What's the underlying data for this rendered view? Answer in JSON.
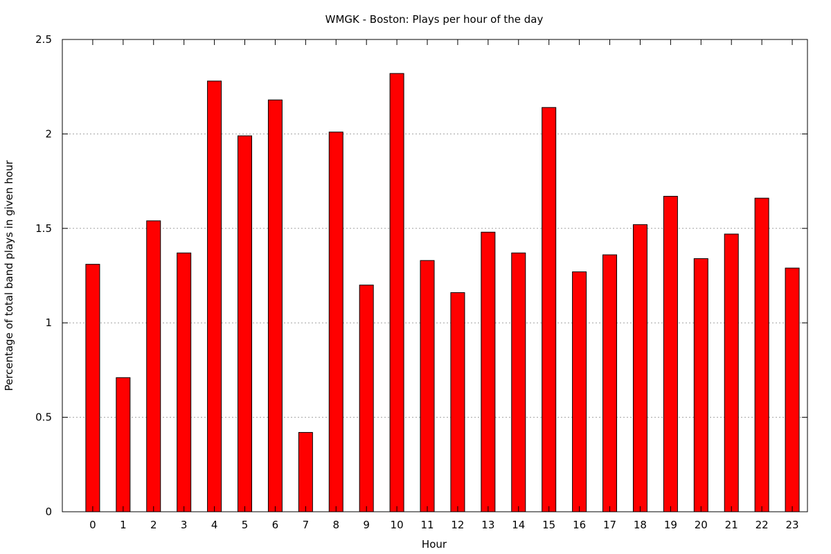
{
  "chart_data": {
    "type": "bar",
    "title": "WMGK - Boston: Plays per hour of the day",
    "xlabel": "Hour",
    "ylabel": "Percentage of total band plays in given hour",
    "categories": [
      "0",
      "1",
      "2",
      "3",
      "4",
      "5",
      "6",
      "7",
      "8",
      "9",
      "10",
      "11",
      "12",
      "13",
      "14",
      "15",
      "16",
      "17",
      "18",
      "19",
      "20",
      "21",
      "22",
      "23"
    ],
    "values": [
      1.31,
      0.71,
      1.54,
      1.37,
      2.28,
      1.99,
      2.18,
      0.42,
      2.01,
      1.2,
      2.32,
      1.33,
      1.16,
      1.48,
      1.37,
      2.14,
      1.27,
      1.36,
      1.52,
      1.67,
      1.34,
      1.47,
      1.66,
      1.29
    ],
    "ylim": [
      0,
      2.5
    ],
    "yticks": [
      "0",
      "0.5",
      "1",
      "1.5",
      "2",
      "2.5"
    ],
    "ytick_values": [
      0,
      0.5,
      1,
      1.5,
      2,
      2.5
    ],
    "grid": true,
    "bar_color": "#ff0000",
    "bar_edge_color": "#000000",
    "grid_color": "#a0a0a0"
  }
}
